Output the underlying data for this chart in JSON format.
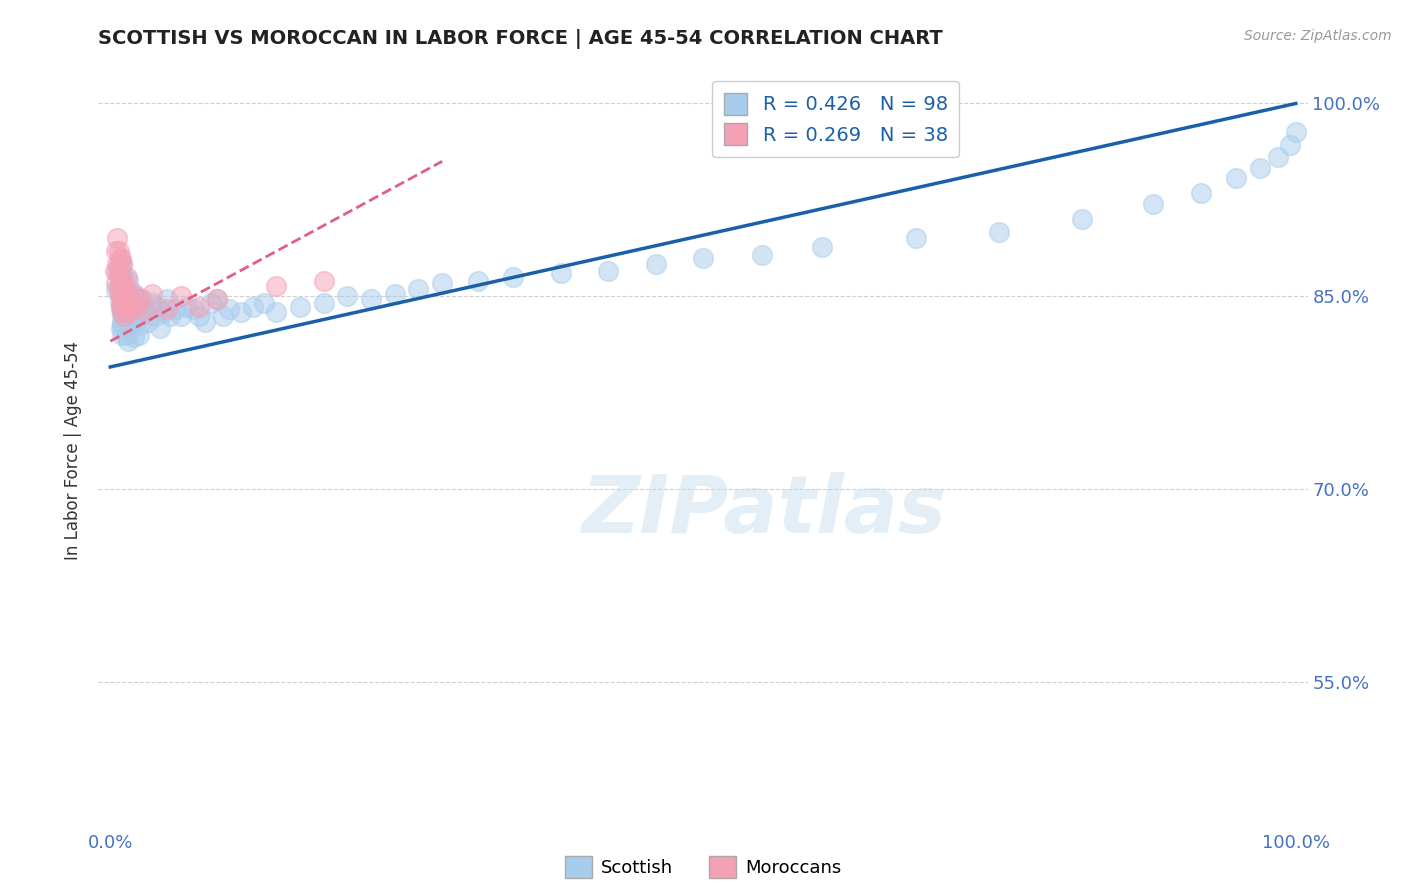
{
  "title": "SCOTTISH VS MOROCCAN IN LABOR FORCE | AGE 45-54 CORRELATION CHART",
  "source": "Source: ZipAtlas.com",
  "ylabel": "In Labor Force | Age 45-54",
  "xlim": [
    -0.01,
    1.01
  ],
  "ylim": [
    0.435,
    1.025
  ],
  "yticks": [
    0.55,
    0.7,
    0.85,
    1.0
  ],
  "ytick_labels": [
    "55.0%",
    "70.0%",
    "85.0%",
    "100.0%"
  ],
  "legend_blue_label": "Scottish",
  "legend_pink_label": "Moroccans",
  "R_blue": 0.426,
  "N_blue": 98,
  "R_pink": 0.269,
  "N_pink": 38,
  "blue_dot_color": "#a8ccec",
  "pink_dot_color": "#f4a0b5",
  "blue_line_color": "#1a5fa8",
  "pink_line_color": "#e06080",
  "title_color": "#222222",
  "axis_label_color": "#333333",
  "tick_color": "#4472c4",
  "grid_color": "#d0d0d0",
  "watermark": "ZIPatlas",
  "blue_line_x0": 0.0,
  "blue_line_y0": 0.795,
  "blue_line_x1": 1.0,
  "blue_line_y1": 1.0,
  "pink_line_x0": 0.0,
  "pink_line_y0": 0.815,
  "pink_line_x1": 0.28,
  "pink_line_y1": 0.955,
  "blue_scatter_x": [
    0.005,
    0.006,
    0.007,
    0.008,
    0.008,
    0.009,
    0.009,
    0.009,
    0.009,
    0.01,
    0.01,
    0.01,
    0.01,
    0.01,
    0.01,
    0.01,
    0.01,
    0.01,
    0.01,
    0.01,
    0.011,
    0.012,
    0.012,
    0.013,
    0.013,
    0.013,
    0.014,
    0.014,
    0.015,
    0.015,
    0.015,
    0.015,
    0.016,
    0.016,
    0.017,
    0.017,
    0.018,
    0.018,
    0.019,
    0.02,
    0.02,
    0.02,
    0.021,
    0.022,
    0.023,
    0.024,
    0.025,
    0.025,
    0.026,
    0.027,
    0.03,
    0.032,
    0.035,
    0.038,
    0.04,
    0.042,
    0.045,
    0.048,
    0.05,
    0.055,
    0.06,
    0.065,
    0.07,
    0.075,
    0.08,
    0.085,
    0.09,
    0.095,
    0.1,
    0.11,
    0.12,
    0.13,
    0.14,
    0.16,
    0.18,
    0.2,
    0.22,
    0.24,
    0.26,
    0.28,
    0.31,
    0.34,
    0.38,
    0.42,
    0.46,
    0.5,
    0.55,
    0.6,
    0.68,
    0.75,
    0.82,
    0.88,
    0.92,
    0.95,
    0.97,
    0.985,
    0.995,
    1.0
  ],
  "blue_scatter_y": [
    0.855,
    0.87,
    0.855,
    0.86,
    0.845,
    0.87,
    0.855,
    0.84,
    0.825,
    0.865,
    0.85,
    0.835,
    0.82,
    0.875,
    0.858,
    0.842,
    0.828,
    0.86,
    0.845,
    0.83,
    0.852,
    0.865,
    0.84,
    0.855,
    0.838,
    0.82,
    0.848,
    0.835,
    0.862,
    0.845,
    0.83,
    0.815,
    0.85,
    0.835,
    0.855,
    0.838,
    0.845,
    0.828,
    0.835,
    0.85,
    0.832,
    0.818,
    0.84,
    0.85,
    0.835,
    0.82,
    0.845,
    0.828,
    0.835,
    0.848,
    0.84,
    0.83,
    0.845,
    0.835,
    0.842,
    0.825,
    0.838,
    0.848,
    0.835,
    0.84,
    0.835,
    0.842,
    0.84,
    0.835,
    0.83,
    0.845,
    0.848,
    0.835,
    0.84,
    0.838,
    0.842,
    0.845,
    0.838,
    0.842,
    0.845,
    0.85,
    0.848,
    0.852,
    0.856,
    0.86,
    0.862,
    0.865,
    0.868,
    0.87,
    0.875,
    0.88,
    0.882,
    0.888,
    0.895,
    0.9,
    0.91,
    0.922,
    0.93,
    0.942,
    0.95,
    0.958,
    0.968,
    0.978
  ],
  "pink_scatter_x": [
    0.004,
    0.005,
    0.005,
    0.006,
    0.006,
    0.007,
    0.007,
    0.007,
    0.008,
    0.008,
    0.009,
    0.009,
    0.009,
    0.009,
    0.01,
    0.01,
    0.01,
    0.01,
    0.01,
    0.011,
    0.012,
    0.012,
    0.013,
    0.014,
    0.015,
    0.016,
    0.018,
    0.02,
    0.022,
    0.025,
    0.03,
    0.035,
    0.048,
    0.06,
    0.075,
    0.09,
    0.14,
    0.18
  ],
  "pink_scatter_y": [
    0.87,
    0.885,
    0.86,
    0.895,
    0.875,
    0.855,
    0.885,
    0.868,
    0.85,
    0.878,
    0.86,
    0.842,
    0.88,
    0.862,
    0.845,
    0.875,
    0.855,
    0.838,
    0.862,
    0.848,
    0.835,
    0.858,
    0.842,
    0.865,
    0.852,
    0.838,
    0.845,
    0.852,
    0.842,
    0.848,
    0.838,
    0.852,
    0.84,
    0.85,
    0.842,
    0.848,
    0.858,
    0.862
  ]
}
